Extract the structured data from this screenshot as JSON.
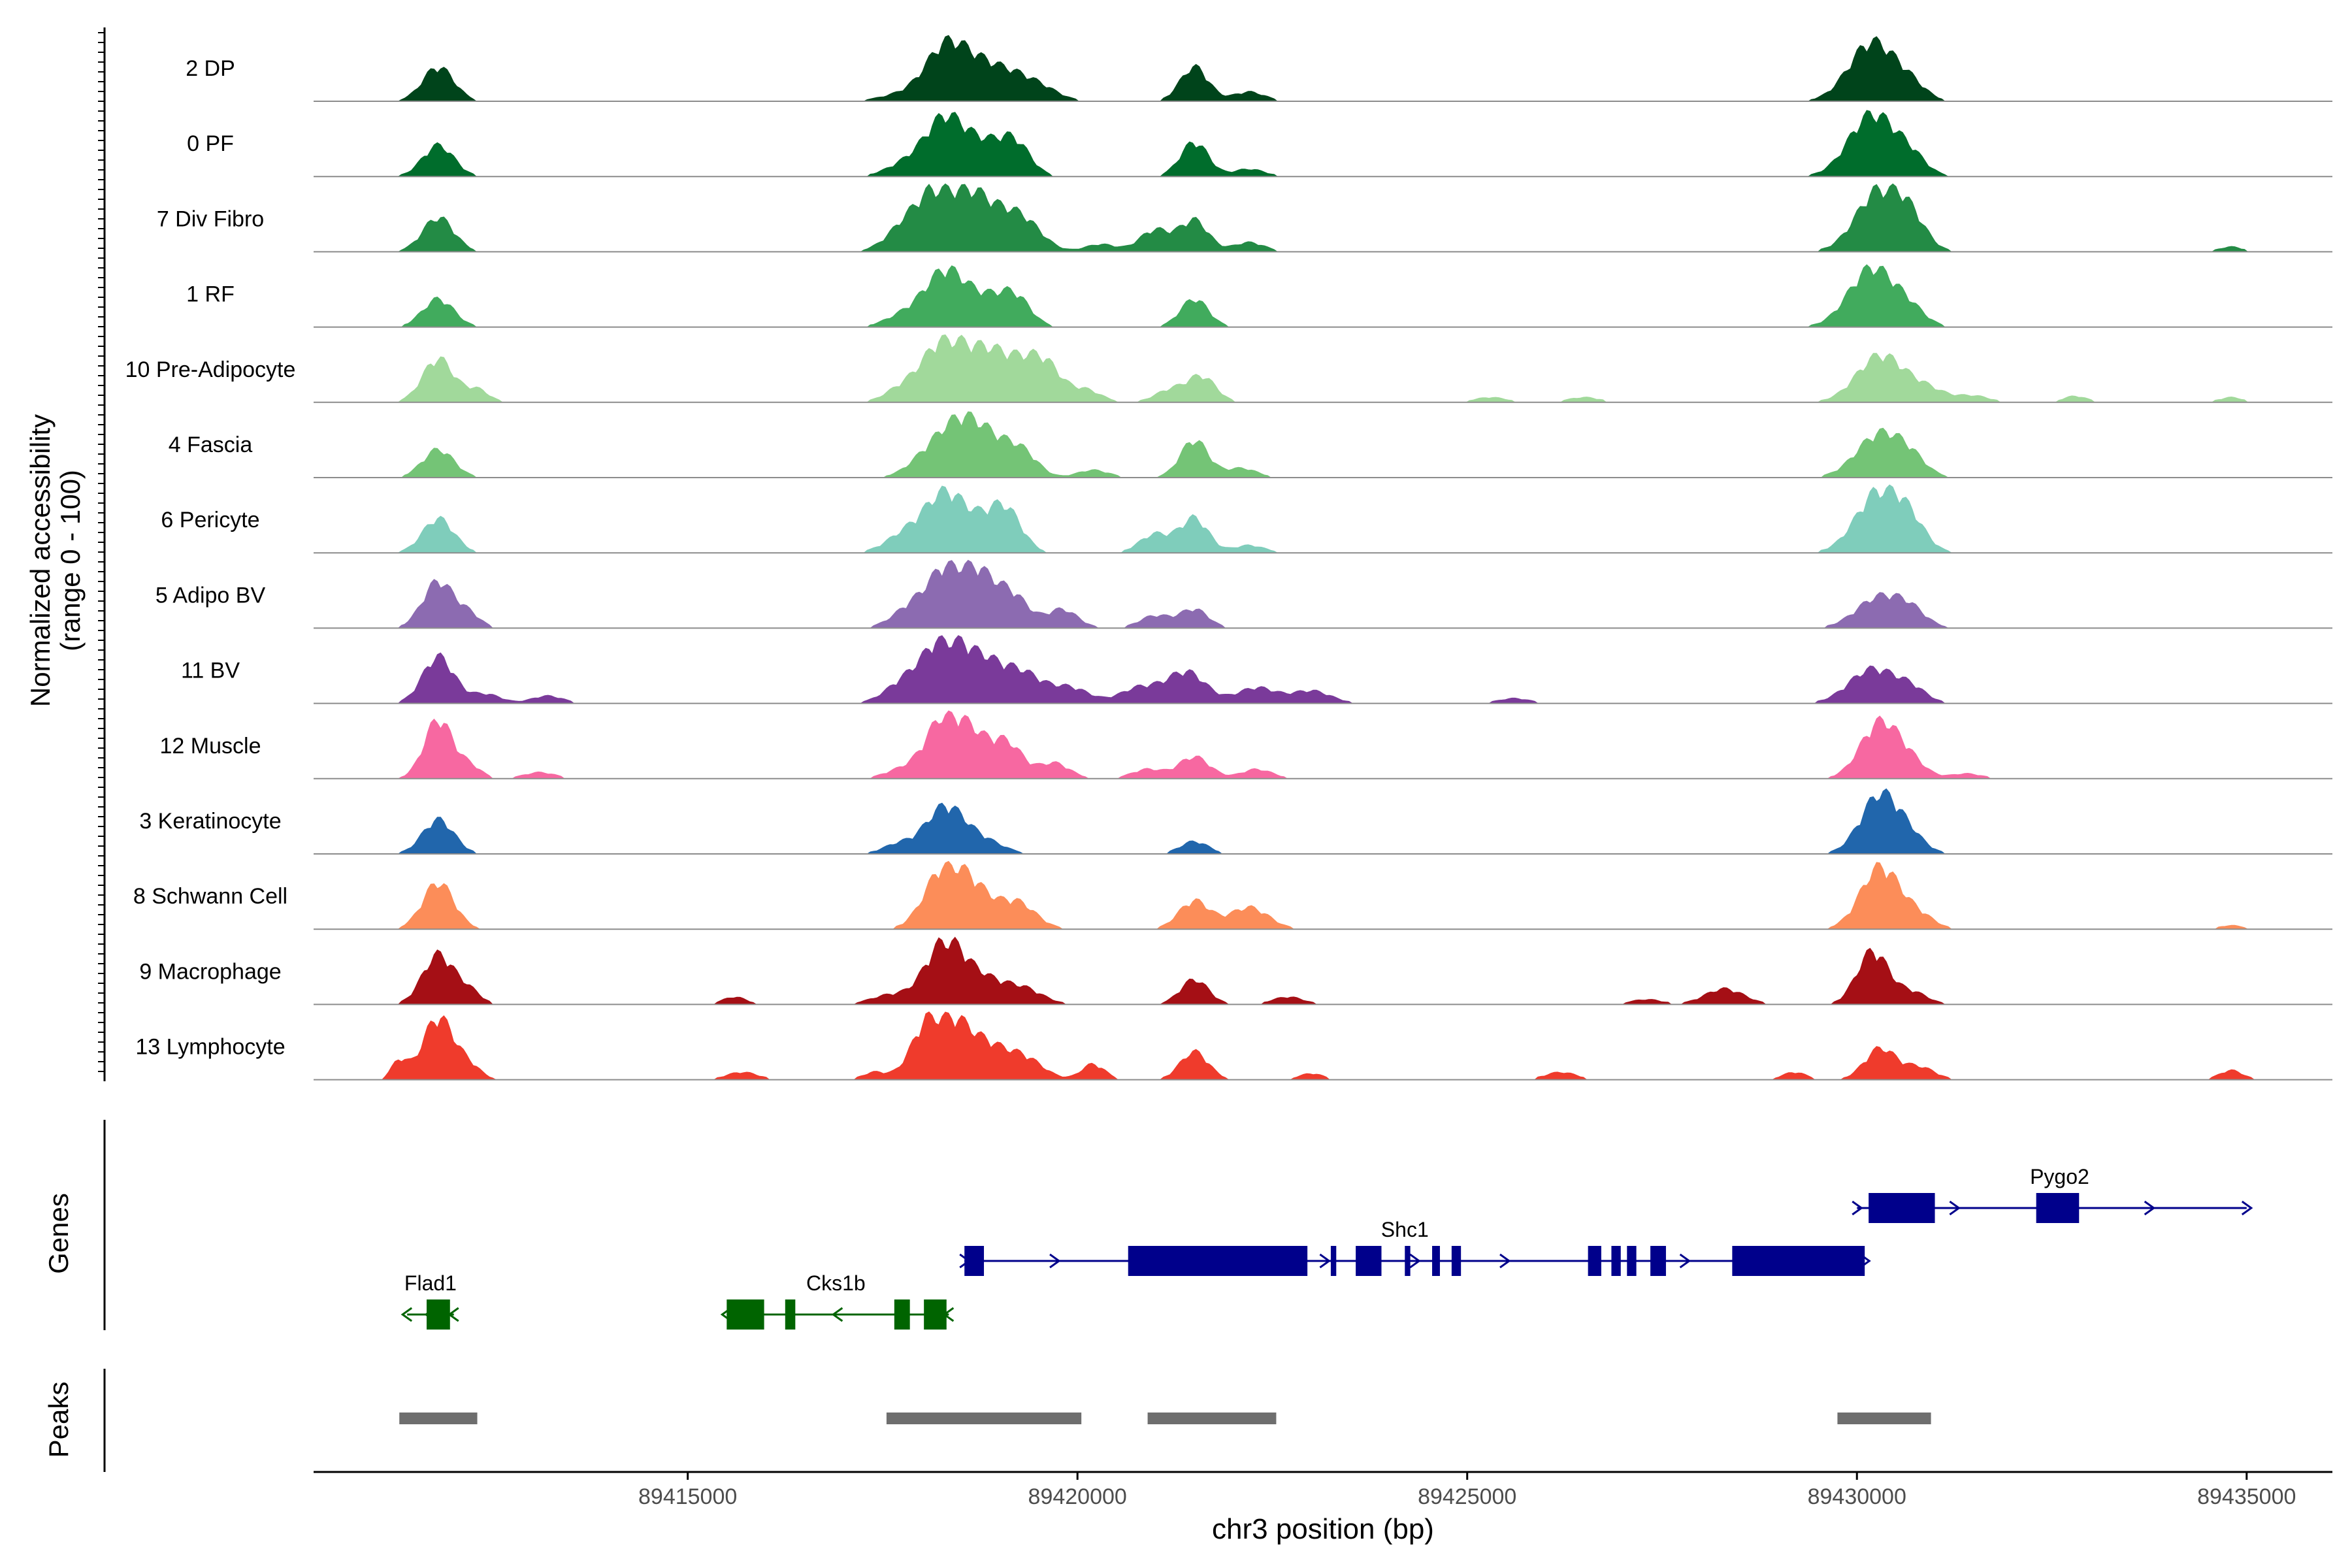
{
  "chart_data": {
    "type": "area",
    "title": "",
    "ylabel_line1": "Normalized accessibility",
    "ylabel_line2": "(range 0 - 100)",
    "genes_label": "Genes",
    "peaks_label": "Peaks",
    "xlabel": "chr3 position (bp)",
    "xlim": [
      89410200,
      89436100
    ],
    "x_ticks": [
      89415000,
      89420000,
      89425000,
      89430000,
      89435000
    ],
    "x_tick_labels": [
      "89415000",
      "89420000",
      "89425000",
      "89430000",
      "89435000"
    ],
    "tracks": [
      {
        "name": "2 DP",
        "color": "#00441b",
        "peaks": [
          [
            89411800,
            0.55,
            200
          ],
          [
            89417800,
            0.12,
            300
          ],
          [
            89418300,
            0.8,
            250
          ],
          [
            89418700,
            0.45,
            250
          ],
          [
            89419100,
            0.35,
            250
          ],
          [
            89419500,
            0.22,
            250
          ],
          [
            89421500,
            0.55,
            180
          ],
          [
            89422200,
            0.15,
            200
          ],
          [
            89430200,
            0.95,
            300
          ],
          [
            89430700,
            0.2,
            200
          ]
        ]
      },
      {
        "name": "0 PF",
        "color": "#006d2c",
        "peaks": [
          [
            89411800,
            0.5,
            200
          ],
          [
            89417800,
            0.2,
            250
          ],
          [
            89418300,
            0.9,
            250
          ],
          [
            89418800,
            0.45,
            250
          ],
          [
            89419200,
            0.5,
            200
          ],
          [
            89421500,
            0.55,
            180
          ],
          [
            89422200,
            0.12,
            200
          ],
          [
            89430200,
            1.0,
            300
          ],
          [
            89430700,
            0.25,
            200
          ]
        ]
      },
      {
        "name": "7 Div Fibro",
        "color": "#238b45",
        "peaks": [
          [
            89411800,
            0.55,
            200
          ],
          [
            89417800,
            0.35,
            250
          ],
          [
            89418300,
            1.0,
            300
          ],
          [
            89418800,
            0.6,
            300
          ],
          [
            89419300,
            0.45,
            250
          ],
          [
            89420300,
            0.12,
            200
          ],
          [
            89421000,
            0.35,
            200
          ],
          [
            89421500,
            0.5,
            180
          ],
          [
            89422200,
            0.15,
            200
          ],
          [
            89430300,
            1.0,
            300
          ],
          [
            89430700,
            0.35,
            200
          ],
          [
            89434800,
            0.08,
            150
          ]
        ]
      },
      {
        "name": "1 RF",
        "color": "#41ab5d",
        "peaks": [
          [
            89411800,
            0.45,
            200
          ],
          [
            89417800,
            0.2,
            250
          ],
          [
            89418300,
            0.85,
            250
          ],
          [
            89418800,
            0.4,
            250
          ],
          [
            89419200,
            0.45,
            200
          ],
          [
            89421500,
            0.45,
            180
          ],
          [
            89430200,
            0.95,
            300
          ],
          [
            89430700,
            0.2,
            200
          ]
        ]
      },
      {
        "name": "10 Pre-Adipocyte",
        "color": "#a1d99b",
        "peaks": [
          [
            89411800,
            0.7,
            200
          ],
          [
            89412300,
            0.2,
            150
          ],
          [
            89417700,
            0.15,
            200
          ],
          [
            89418300,
            1.0,
            300
          ],
          [
            89418900,
            0.7,
            250
          ],
          [
            89419300,
            0.4,
            200
          ],
          [
            89419600,
            0.55,
            200
          ],
          [
            89420100,
            0.2,
            200
          ],
          [
            89421200,
            0.2,
            200
          ],
          [
            89421600,
            0.4,
            180
          ],
          [
            89425300,
            0.08,
            200
          ],
          [
            89426500,
            0.08,
            200
          ],
          [
            89430300,
            0.75,
            300
          ],
          [
            89430900,
            0.2,
            250
          ],
          [
            89431500,
            0.1,
            200
          ],
          [
            89432800,
            0.1,
            150
          ],
          [
            89434800,
            0.08,
            150
          ]
        ]
      },
      {
        "name": "4 Fascia",
        "color": "#74c476",
        "peaks": [
          [
            89411800,
            0.45,
            200
          ],
          [
            89418100,
            0.35,
            250
          ],
          [
            89418500,
            0.75,
            250
          ],
          [
            89418900,
            0.5,
            250
          ],
          [
            89419300,
            0.35,
            200
          ],
          [
            89420200,
            0.12,
            200
          ],
          [
            89421500,
            0.6,
            180
          ],
          [
            89422100,
            0.15,
            200
          ],
          [
            89430300,
            0.7,
            300
          ],
          [
            89430700,
            0.2,
            200
          ]
        ]
      },
      {
        "name": "6 Pericyte",
        "color": "#7fcdbb",
        "peaks": [
          [
            89411800,
            0.55,
            200
          ],
          [
            89417800,
            0.3,
            250
          ],
          [
            89418300,
            0.9,
            250
          ],
          [
            89418800,
            0.4,
            250
          ],
          [
            89419100,
            0.55,
            200
          ],
          [
            89421000,
            0.3,
            200
          ],
          [
            89421500,
            0.55,
            180
          ],
          [
            89422200,
            0.12,
            200
          ],
          [
            89430300,
            1.0,
            300
          ],
          [
            89430700,
            0.3,
            200
          ]
        ]
      },
      {
        "name": "5 Adipo BV",
        "color": "#8c6bb1",
        "peaks": [
          [
            89411800,
            0.75,
            200
          ],
          [
            89412200,
            0.2,
            150
          ],
          [
            89417900,
            0.35,
            250
          ],
          [
            89418400,
            1.0,
            250
          ],
          [
            89418800,
            0.6,
            250
          ],
          [
            89419200,
            0.4,
            200
          ],
          [
            89419800,
            0.3,
            200
          ],
          [
            89421000,
            0.2,
            200
          ],
          [
            89421500,
            0.3,
            180
          ],
          [
            89430300,
            0.5,
            300
          ],
          [
            89430700,
            0.2,
            200
          ]
        ]
      },
      {
        "name": "11 BV",
        "color": "#7a3a9a",
        "peaks": [
          [
            89411800,
            0.75,
            200
          ],
          [
            89412400,
            0.15,
            200
          ],
          [
            89413200,
            0.12,
            200
          ],
          [
            89417800,
            0.35,
            250
          ],
          [
            89418300,
            1.0,
            250
          ],
          [
            89418800,
            0.6,
            250
          ],
          [
            89419300,
            0.45,
            250
          ],
          [
            89419900,
            0.25,
            250
          ],
          [
            89420800,
            0.25,
            250
          ],
          [
            89421400,
            0.5,
            250
          ],
          [
            89422300,
            0.25,
            250
          ],
          [
            89423000,
            0.2,
            250
          ],
          [
            89425600,
            0.08,
            200
          ],
          [
            89430200,
            0.55,
            300
          ],
          [
            89430700,
            0.2,
            200
          ]
        ]
      },
      {
        "name": "12 Muscle",
        "color": "#f768a1",
        "peaks": [
          [
            89411800,
            0.95,
            180
          ],
          [
            89412200,
            0.2,
            150
          ],
          [
            89413100,
            0.1,
            200
          ],
          [
            89417700,
            0.12,
            200
          ],
          [
            89418300,
            1.0,
            250
          ],
          [
            89418700,
            0.45,
            200
          ],
          [
            89419100,
            0.55,
            200
          ],
          [
            89419700,
            0.25,
            200
          ],
          [
            89420900,
            0.15,
            200
          ],
          [
            89421500,
            0.35,
            200
          ],
          [
            89422300,
            0.15,
            200
          ],
          [
            89430300,
            0.9,
            250
          ],
          [
            89430700,
            0.2,
            200
          ],
          [
            89431400,
            0.08,
            200
          ]
        ]
      },
      {
        "name": "3 Keratinocyte",
        "color": "#2166ac",
        "peaks": [
          [
            89411800,
            0.55,
            200
          ],
          [
            89417700,
            0.15,
            200
          ],
          [
            89418300,
            0.75,
            250
          ],
          [
            89418800,
            0.2,
            250
          ],
          [
            89421500,
            0.2,
            180
          ],
          [
            89430300,
            0.95,
            250
          ],
          [
            89430700,
            0.2,
            200
          ]
        ]
      },
      {
        "name": "8 Schwann Cell",
        "color": "#fc8d59",
        "peaks": [
          [
            89411800,
            0.75,
            200
          ],
          [
            89418300,
            1.0,
            250
          ],
          [
            89418700,
            0.45,
            200
          ],
          [
            89419200,
            0.45,
            250
          ],
          [
            89421500,
            0.45,
            200
          ],
          [
            89422200,
            0.35,
            250
          ],
          [
            89430300,
            1.0,
            250
          ],
          [
            89430800,
            0.2,
            200
          ],
          [
            89434800,
            0.06,
            150
          ]
        ]
      },
      {
        "name": "9 Macrophage",
        "color": "#a50f15",
        "peaks": [
          [
            89411800,
            0.8,
            200
          ],
          [
            89412200,
            0.2,
            150
          ],
          [
            89415600,
            0.12,
            150
          ],
          [
            89417600,
            0.15,
            250
          ],
          [
            89418300,
            1.0,
            250
          ],
          [
            89418800,
            0.35,
            250
          ],
          [
            89419300,
            0.25,
            250
          ],
          [
            89421500,
            0.4,
            180
          ],
          [
            89422700,
            0.12,
            200
          ],
          [
            89427300,
            0.08,
            200
          ],
          [
            89428300,
            0.25,
            250
          ],
          [
            89430200,
            0.85,
            200
          ],
          [
            89430700,
            0.2,
            200
          ]
        ]
      },
      {
        "name": "13 Lymphocyte",
        "color": "#ef3b2c",
        "peaks": [
          [
            89411300,
            0.3,
            100
          ],
          [
            89411800,
            1.0,
            200
          ],
          [
            89412200,
            0.2,
            150
          ],
          [
            89415700,
            0.12,
            200
          ],
          [
            89417400,
            0.12,
            150
          ],
          [
            89418000,
            0.4,
            200
          ],
          [
            89418300,
            1.0,
            250
          ],
          [
            89418800,
            0.5,
            250
          ],
          [
            89419300,
            0.35,
            250
          ],
          [
            89420200,
            0.25,
            150
          ],
          [
            89421500,
            0.45,
            180
          ],
          [
            89423000,
            0.1,
            150
          ],
          [
            89426200,
            0.12,
            200
          ],
          [
            89429200,
            0.12,
            150
          ],
          [
            89430300,
            0.5,
            200
          ],
          [
            89430800,
            0.2,
            200
          ],
          [
            89434800,
            0.15,
            150
          ]
        ]
      }
    ],
    "genes": [
      {
        "name": "Flad1",
        "strand": "-",
        "color": "#006400",
        "row": 1,
        "start": 89411400,
        "end": 89412000,
        "exons": [
          [
            89411650,
            89411950
          ]
        ]
      },
      {
        "name": "Cks1b",
        "strand": "-",
        "color": "#006400",
        "row": 1,
        "start": 89415500,
        "end": 89418350,
        "exons": [
          [
            89415500,
            89415980
          ],
          [
            89416250,
            89416380
          ],
          [
            89417650,
            89417850
          ],
          [
            89418030,
            89418320
          ]
        ]
      },
      {
        "name": "Shc1",
        "strand": "+",
        "color": "#00008b",
        "row": 0,
        "start": 89418550,
        "end": 89430100,
        "exons": [
          [
            89418550,
            89418800
          ],
          [
            89420650,
            89422950
          ],
          [
            89423250,
            89423320
          ],
          [
            89423570,
            89423900
          ],
          [
            89424200,
            89424270
          ],
          [
            89424550,
            89424650
          ],
          [
            89424800,
            89424920
          ],
          [
            89426550,
            89426720
          ],
          [
            89426850,
            89426970
          ],
          [
            89427050,
            89427170
          ],
          [
            89427350,
            89427550
          ],
          [
            89428400,
            89430100
          ]
        ]
      },
      {
        "name": "Pygo2",
        "strand": "+",
        "color": "#00008b",
        "row": -1,
        "start": 89430000,
        "end": 89435000,
        "exons": [
          [
            89430150,
            89431000
          ],
          [
            89432300,
            89432850
          ]
        ]
      }
    ],
    "peaks": [
      {
        "start": 89411300,
        "end": 89412300
      },
      {
        "start": 89417550,
        "end": 89420050
      },
      {
        "start": 89420900,
        "end": 89422550
      },
      {
        "start": 89429750,
        "end": 89430950
      }
    ]
  }
}
